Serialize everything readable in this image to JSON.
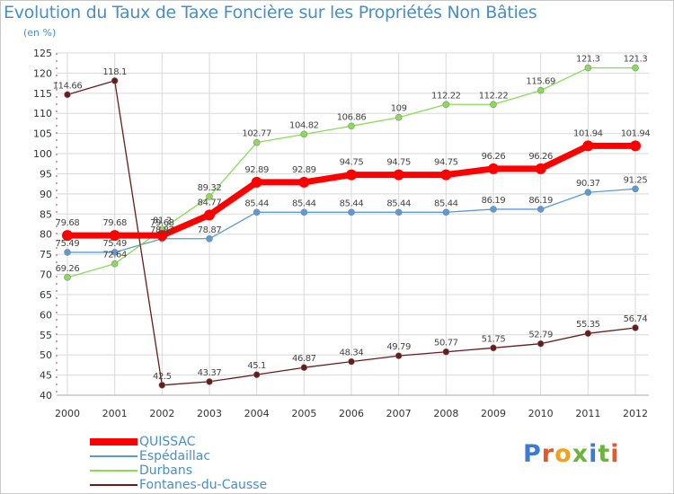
{
  "title": "Evolution du Taux de Taxe Foncière sur les Propriétés Non Bâties",
  "subtitle": "(en %)",
  "brand": {
    "text": "Proxiti",
    "letter_colors": [
      "#3a7bd5",
      "#e8562a",
      "#f0a21b",
      "#6cb33f",
      "#3a7bd5",
      "#6cb33f",
      "#e8562a"
    ]
  },
  "chart_data": {
    "type": "line",
    "title": "Evolution du Taux de Taxe Foncière sur les Propriétés Non Bâties",
    "ylabel": "(en %)",
    "xlabel": "",
    "ylim": [
      40,
      125
    ],
    "y_ticks": [
      40,
      45,
      50,
      55,
      60,
      65,
      70,
      75,
      80,
      85,
      90,
      95,
      100,
      105,
      110,
      115,
      120,
      125
    ],
    "grid": true,
    "legend": "bottom-left",
    "x": [
      "2000",
      "2001",
      "2002",
      "2003",
      "2004",
      "2005",
      "2006",
      "2007",
      "2008",
      "2009",
      "2010",
      "2011",
      "2012"
    ],
    "series": [
      {
        "name": "QUISSAC",
        "color": "#ff0000",
        "values": [
          79.68,
          79.68,
          79.68,
          84.77,
          92.89,
          92.89,
          94.75,
          94.75,
          94.75,
          96.26,
          96.26,
          101.94,
          101.94
        ],
        "labels": [
          "79.68",
          "79.68",
          "79.68",
          "84.77",
          "92.89",
          "92.89",
          "94.75",
          "94.75",
          "94.75",
          "96.26",
          "96.26",
          "101.94",
          "101.94"
        ]
      },
      {
        "name": "Espédaillac",
        "color": "#5b9bd5",
        "values": [
          75.49,
          75.49,
          78.87,
          78.87,
          85.44,
          85.44,
          85.44,
          85.44,
          85.44,
          86.19,
          86.19,
          90.37,
          91.25
        ],
        "labels": [
          "75.49",
          "75.49",
          "78.87",
          "78.87",
          "85.44",
          "85.44",
          "85.44",
          "85.44",
          "85.44",
          "86.19",
          "86.19",
          "90.37",
          "91.25"
        ]
      },
      {
        "name": "Durbans",
        "color": "#88dd55",
        "values": [
          69.26,
          72.64,
          81.2,
          89.32,
          102.77,
          104.82,
          106.86,
          109,
          112.22,
          112.22,
          115.69,
          121.3,
          121.3
        ],
        "labels": [
          "69.26",
          "72.64",
          "81.2",
          "89.32",
          "102.77",
          "104.82",
          "106.86",
          "109",
          "112.22",
          "112.22",
          "115.69",
          "121.3",
          "121.3"
        ]
      },
      {
        "name": "Fontanes-du-Causse",
        "color": "#6b1a1a",
        "values": [
          114.66,
          118.1,
          42.5,
          43.37,
          45.1,
          46.87,
          48.34,
          49.79,
          50.77,
          51.75,
          52.79,
          55.35,
          56.74
        ],
        "labels": [
          "114.66",
          "118.1",
          "42.5",
          "43.37",
          "45.1",
          "46.87",
          "48.34",
          "49.79",
          "50.77",
          "51.75",
          "52.79",
          "55.35",
          "56.74"
        ]
      }
    ]
  }
}
